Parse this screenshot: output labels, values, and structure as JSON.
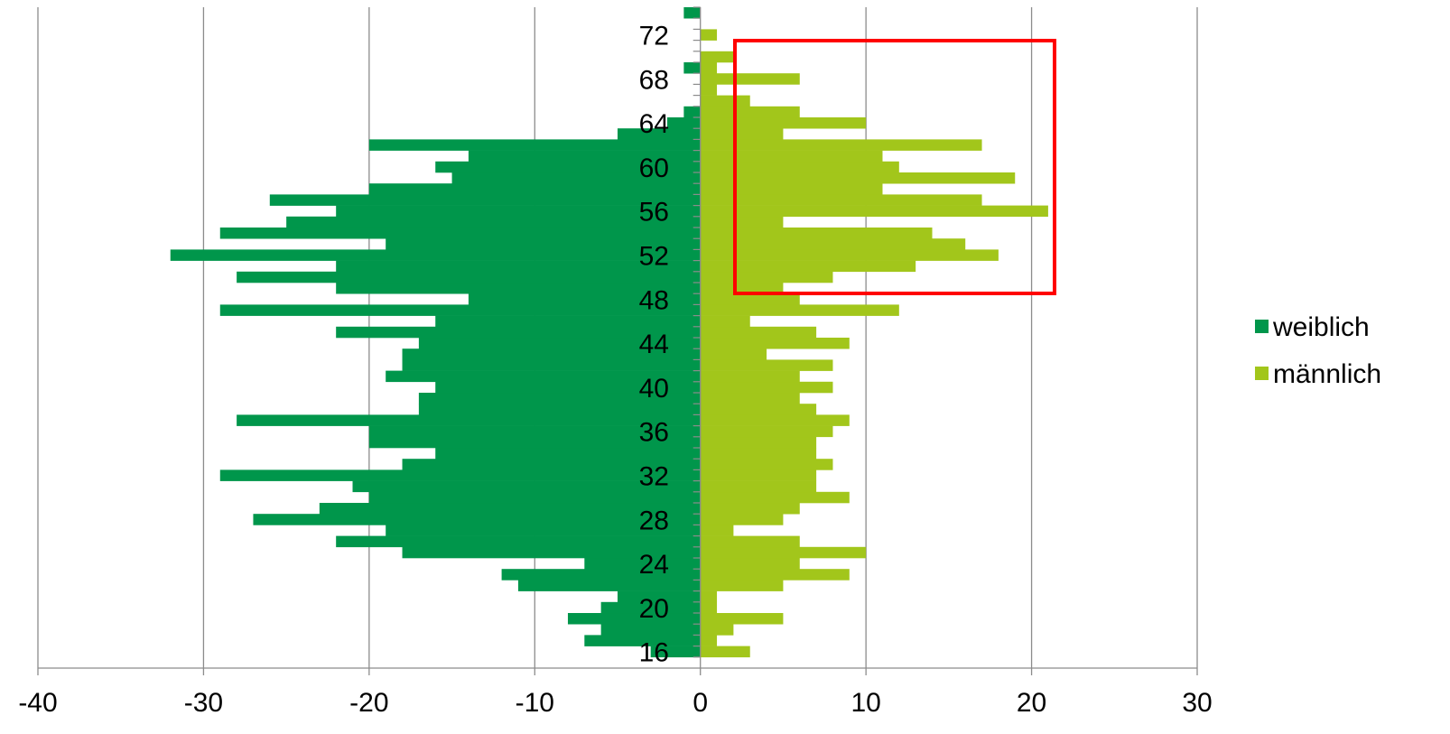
{
  "chart_data": {
    "type": "bar",
    "orientation": "horizontal",
    "stacked": true,
    "ages": [
      16,
      17,
      18,
      19,
      20,
      21,
      22,
      23,
      24,
      25,
      26,
      27,
      28,
      29,
      30,
      31,
      32,
      33,
      34,
      35,
      36,
      37,
      38,
      39,
      40,
      41,
      42,
      43,
      44,
      45,
      46,
      47,
      48,
      49,
      50,
      51,
      52,
      53,
      54,
      55,
      56,
      57,
      58,
      59,
      60,
      61,
      62,
      63,
      64,
      65,
      66,
      67,
      68,
      69,
      70,
      71,
      72,
      73,
      74
    ],
    "y_ticks": [
      "16",
      "20",
      "24",
      "28",
      "32",
      "36",
      "40",
      "44",
      "48",
      "52",
      "56",
      "60",
      "64",
      "68",
      "72"
    ],
    "x_ticks": [
      "-40",
      "-30",
      "-20",
      "-10",
      "0",
      "10",
      "20",
      "30"
    ],
    "xlim": [
      -40,
      30
    ],
    "grid": true,
    "legend_position": "right",
    "series": [
      {
        "name": "weiblich",
        "color": "#00964B",
        "values": [
          -3,
          -7,
          -6,
          -8,
          -6,
          -5,
          -11,
          -12,
          -7,
          -18,
          -22,
          -19,
          -27,
          -23,
          -20,
          -21,
          -29,
          -18,
          -16,
          -20,
          -20,
          -28,
          -17,
          -17,
          -16,
          -19,
          -18,
          -18,
          -17,
          -22,
          -16,
          -29,
          -14,
          -22,
          -28,
          -22,
          -32,
          -19,
          -29,
          -25,
          -22,
          -26,
          -20,
          -15,
          -16,
          -14,
          -20,
          -5,
          -2,
          -1,
          0,
          0,
          0,
          -1,
          0,
          0,
          0,
          0,
          -1
        ]
      },
      {
        "name": "männlich",
        "color": "#A2C61B",
        "values": [
          3,
          1,
          2,
          5,
          1,
          1,
          5,
          9,
          6,
          10,
          6,
          2,
          5,
          6,
          9,
          7,
          7,
          8,
          7,
          7,
          8,
          9,
          7,
          6,
          8,
          6,
          8,
          4,
          9,
          7,
          3,
          12,
          6,
          5,
          8,
          13,
          18,
          16,
          14,
          5,
          21,
          17,
          11,
          19,
          12,
          11,
          17,
          5,
          10,
          6,
          3,
          1,
          6,
          1,
          2,
          0,
          1,
          0,
          0
        ]
      }
    ]
  }
}
